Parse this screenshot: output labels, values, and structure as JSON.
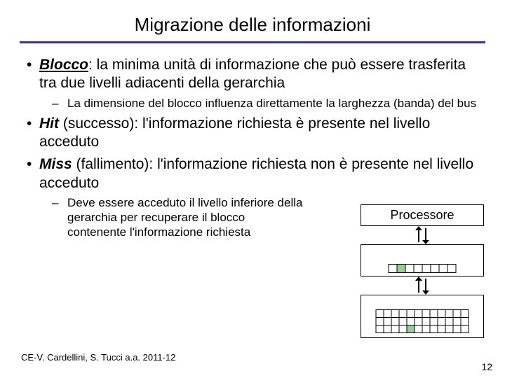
{
  "title": "Migrazione delle informazioni",
  "underline_color": "#333399",
  "bullet1": {
    "term": "Blocco",
    "rest": ": la minima unità di informazione che può essere trasferita tra due livelli adiacenti della gerarchia",
    "sub": "La dimensione del blocco influenza direttamente la larghezza (banda) del bus"
  },
  "bullet2": {
    "term": "Hit",
    "paren": " (successo): ",
    "rest": "l'informazione richiesta è presente nel livello acceduto"
  },
  "bullet3": {
    "term": "Miss",
    "paren": " (fallimento): ",
    "rest": "l'informazione richiesta non è presente nel livello acceduto",
    "sub": "Deve essere acceduto il livello inferiore della gerarchia per recuperare il blocco contenente l'informazione richiesta"
  },
  "diagram": {
    "processor_label": "Processore",
    "mem1": {
      "cells": 8,
      "green_index": 1
    },
    "mem2": {
      "cols": 12,
      "rows": 3,
      "green_row": 2,
      "green_col": 4
    },
    "cell_green": "#99cc99"
  },
  "footer": "CE-V. Cardellini, S. Tucci a.a. 2011-12",
  "page_number": "12"
}
